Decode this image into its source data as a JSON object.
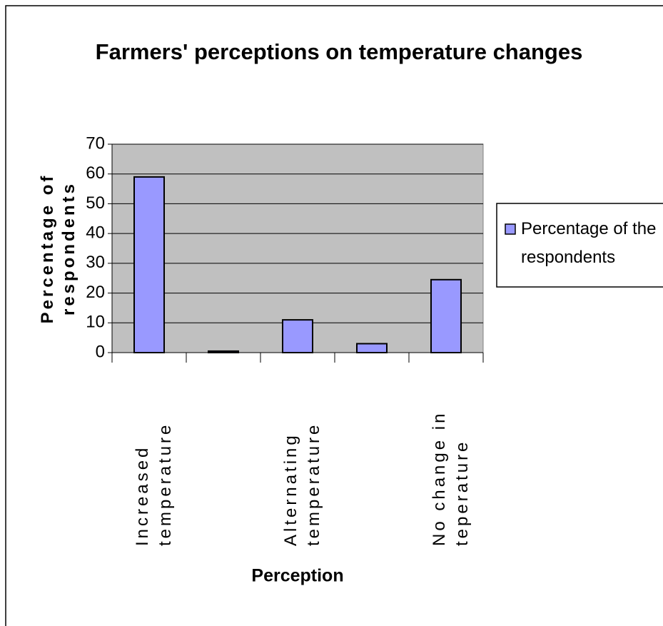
{
  "chart_data": {
    "type": "bar",
    "title": "Farmers' perceptions on temperature changes",
    "x_label": "Perception",
    "y_label": "Percentage of respondents",
    "categories": [
      "Increased temperature",
      null,
      "Alternating temperature",
      null,
      "No change in teperature"
    ],
    "series": [
      {
        "name": "Percentage of the respondents",
        "color": "#9999ff",
        "values": [
          59,
          0.5,
          11,
          3,
          24.5
        ]
      }
    ],
    "ylim": [
      0,
      70
    ],
    "yticks": [
      0,
      10,
      20,
      30,
      40,
      50,
      60,
      70
    ],
    "grid": true,
    "legend": "right"
  }
}
